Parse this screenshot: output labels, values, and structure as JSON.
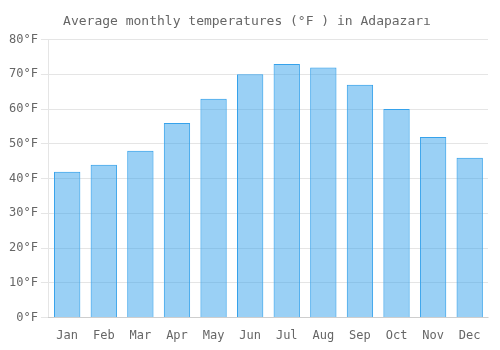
{
  "chart_data": {
    "type": "bar",
    "title": "Average monthly temperatures (°F ) in Adapazarı",
    "categories": [
      "Jan",
      "Feb",
      "Mar",
      "Apr",
      "May",
      "Jun",
      "Jul",
      "Aug",
      "Sep",
      "Oct",
      "Nov",
      "Dec"
    ],
    "values": [
      42,
      44,
      48,
      56,
      63,
      70,
      73,
      72,
      67,
      60,
      52,
      46
    ],
    "ylim": [
      0,
      80
    ],
    "yticks": [
      {
        "value": 0,
        "label": "0°F"
      },
      {
        "value": 10,
        "label": "10°F"
      },
      {
        "value": 20,
        "label": "20°F"
      },
      {
        "value": 30,
        "label": "30°F"
      },
      {
        "value": 40,
        "label": "40°F"
      },
      {
        "value": 50,
        "label": "50°F"
      },
      {
        "value": 60,
        "label": "60°F"
      },
      {
        "value": 70,
        "label": "70°F"
      },
      {
        "value": 80,
        "label": "80°F"
      }
    ],
    "grid": true
  }
}
